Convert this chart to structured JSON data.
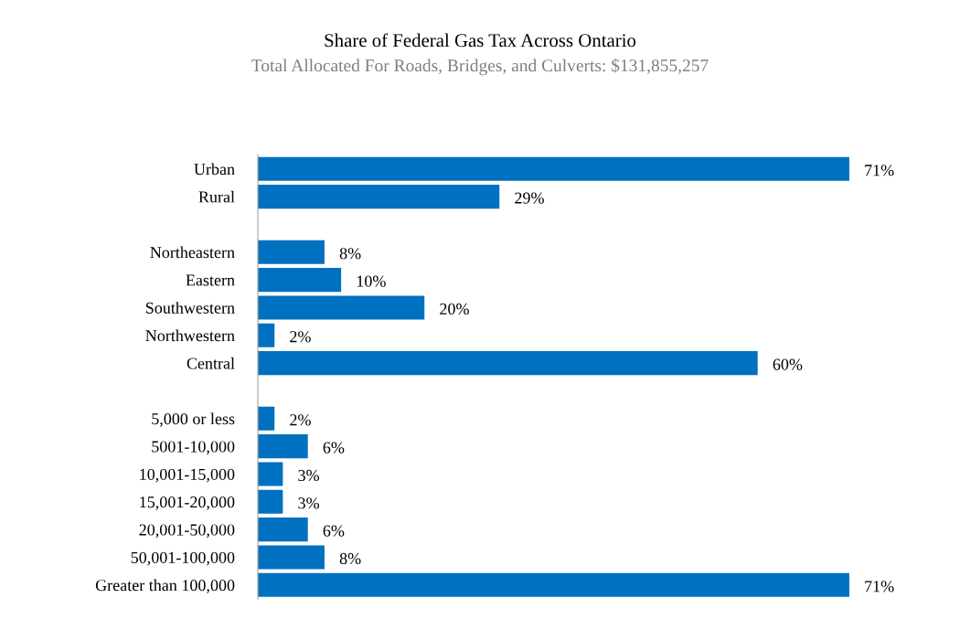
{
  "chart_data": {
    "type": "bar",
    "orientation": "horizontal",
    "title": "Share of Federal Gas Tax Across Ontario",
    "subtitle": "Total Allocated For Roads, Bridges, and Culverts: $131,855,257",
    "categories": [
      "Urban",
      "Rural",
      null,
      "Northeastern",
      "Eastern",
      "Southwestern",
      "Northwestern",
      "Central",
      null,
      "5,000 or less",
      "5001-10,000",
      "10,001-15,000",
      "15,001-20,000",
      "20,001-50,000",
      "50,001-100,000",
      "Greater than 100,000"
    ],
    "values": [
      71,
      29,
      null,
      8,
      10,
      20,
      2,
      60,
      null,
      2,
      6,
      3,
      3,
      6,
      8,
      71
    ],
    "value_labels": [
      "71%",
      "29%",
      null,
      "8%",
      "10%",
      "20%",
      "2%",
      "60%",
      null,
      "2%",
      "6%",
      "3%",
      "3%",
      "6%",
      "8%",
      "71%"
    ],
    "color": "#0070c0",
    "grid": false,
    "legend": false,
    "tick_labels": "y"
  }
}
